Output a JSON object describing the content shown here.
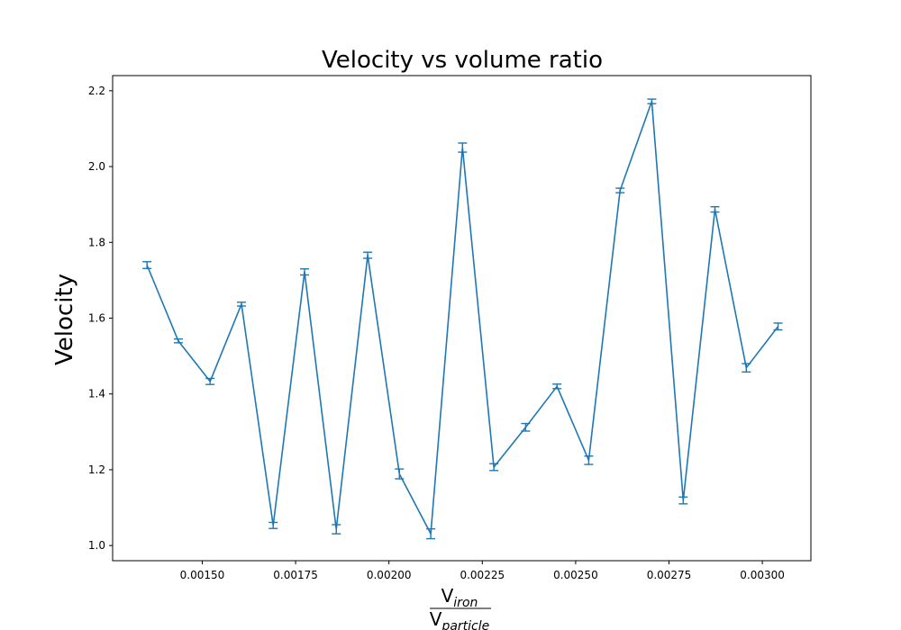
{
  "chart_data": {
    "type": "line",
    "title": "Velocity vs volume ratio",
    "ylabel": "Velocity",
    "xlabel": {
      "numerator": "V",
      "numerator_sub": "iron",
      "denominator": "V",
      "denominator_sub": "particle"
    },
    "xlim": [
      0.00126,
      0.00313
    ],
    "ylim": [
      0.96,
      2.24
    ],
    "xticks": [
      0.0015,
      0.00175,
      0.002,
      0.00225,
      0.0025,
      0.00275,
      0.003
    ],
    "xtick_labels": [
      "0.00150",
      "0.00175",
      "0.00200",
      "0.00225",
      "0.00250",
      "0.00275",
      "0.00300"
    ],
    "yticks": [
      1.0,
      1.2,
      1.4,
      1.6,
      1.8,
      2.0,
      2.2
    ],
    "ytick_labels": [
      "1.0",
      "1.2",
      "1.4",
      "1.6",
      "1.8",
      "2.0",
      "2.2"
    ],
    "grid": false,
    "color": "#1f77b4",
    "series": [
      {
        "x": [
          0.001352,
          0.001436,
          0.001521,
          0.001605,
          0.00169,
          0.001774,
          0.001859,
          0.001943,
          0.002028,
          0.002112,
          0.002197,
          0.002281,
          0.002366,
          0.00245,
          0.002535,
          0.002619,
          0.002704,
          0.002788,
          0.002873,
          0.002957,
          0.003042
        ],
        "y": [
          1.74,
          1.54,
          1.433,
          1.637,
          1.053,
          1.722,
          1.043,
          1.766,
          1.189,
          1.031,
          2.05,
          1.207,
          1.312,
          1.42,
          1.225,
          1.937,
          2.172,
          1.119,
          1.887,
          1.469,
          1.578
        ],
        "err": [
          0.009,
          0.005,
          0.008,
          0.005,
          0.008,
          0.008,
          0.012,
          0.008,
          0.013,
          0.013,
          0.012,
          0.009,
          0.01,
          0.006,
          0.011,
          0.006,
          0.006,
          0.009,
          0.007,
          0.011,
          0.009
        ]
      }
    ]
  }
}
